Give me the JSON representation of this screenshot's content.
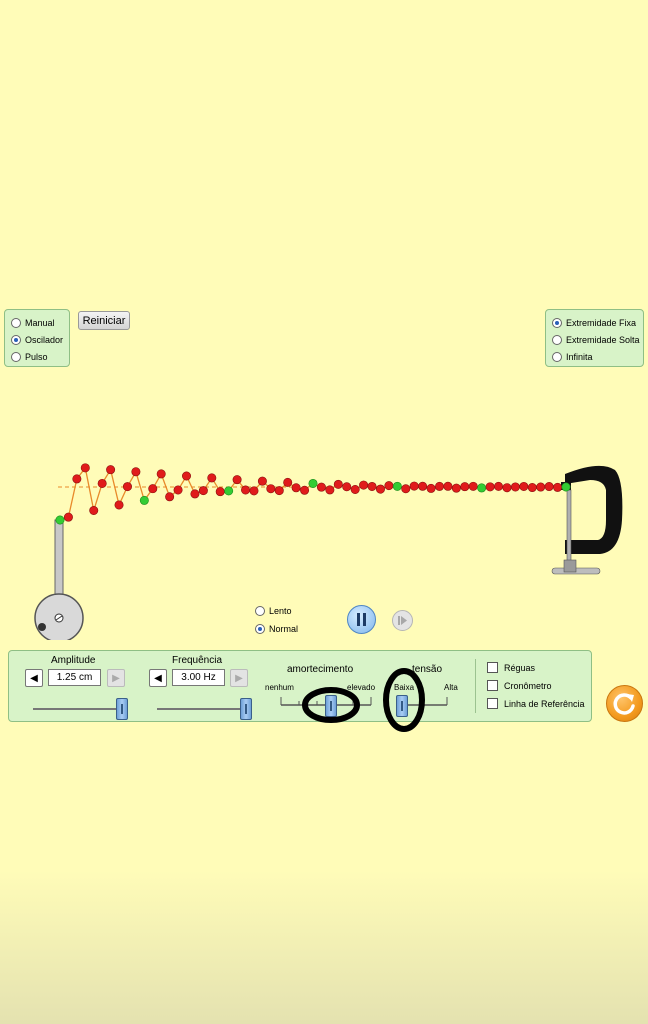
{
  "mode_panel": {
    "options": [
      {
        "label": "Manual",
        "selected": false
      },
      {
        "label": "Oscilador",
        "selected": true
      },
      {
        "label": "Pulso",
        "selected": false
      }
    ]
  },
  "reset_button": {
    "label": "Reiniciar"
  },
  "end_panel": {
    "options": [
      {
        "label": "Extremidade Fixa",
        "selected": true
      },
      {
        "label": "Extremidade Solta",
        "selected": false
      },
      {
        "label": "Infinita",
        "selected": false
      }
    ]
  },
  "playback": {
    "speed_options": [
      {
        "label": "Lento",
        "selected": false
      },
      {
        "label": "Normal",
        "selected": true
      }
    ],
    "pause_icon": "pause-icon",
    "step_icon": "step-forward-icon"
  },
  "controls": {
    "amplitude": {
      "label": "Amplitude",
      "value": "1.25 cm",
      "slider_fraction": 0.95
    },
    "frequency": {
      "label": "Frequência",
      "value": "3.00 Hz",
      "slider_fraction": 0.95
    },
    "damping": {
      "label": "amortecimento",
      "min_label": "nenhum",
      "max_label": "elevado",
      "slider_fraction": 0.55
    },
    "tension": {
      "label": "tensão",
      "min_label": "Baixa",
      "max_label": "Alta",
      "slider_fraction": 0.1
    }
  },
  "options": {
    "rulers": {
      "label": "Réguas",
      "checked": false
    },
    "stopwatch": {
      "label": "Cronômetro",
      "checked": false
    },
    "reference_line": {
      "label": "Linha de Referência",
      "checked": false
    }
  },
  "colors": {
    "background": "#fffcb8",
    "panel": "#d8f3c8",
    "bead": "#e01b1b",
    "bead_marker": "#33cc33",
    "string": "#e88a2a",
    "reset_all": "#f39a1e"
  }
}
